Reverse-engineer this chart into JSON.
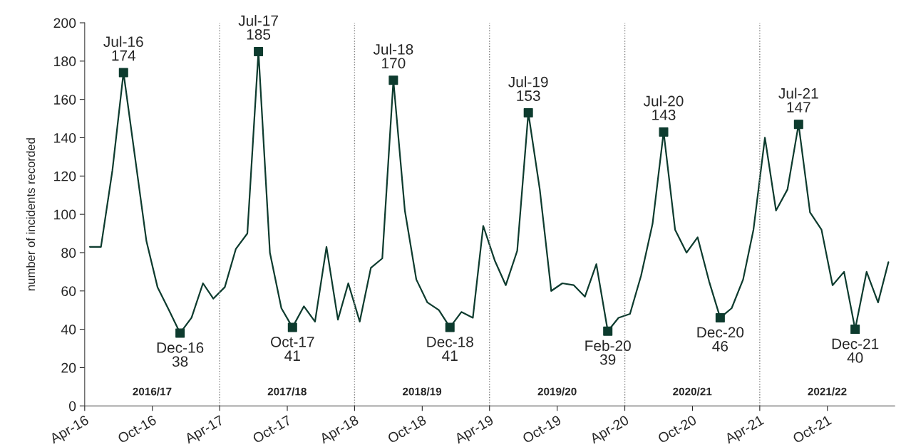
{
  "chart_data": {
    "type": "line",
    "ylabel": "number of incidents recorded",
    "x": [
      "2016-04-15",
      "2016-05-15",
      "2016-06-15",
      "2016-07-15",
      "2016-08-15",
      "2016-09-15",
      "2016-10-15",
      "2016-11-15",
      "2016-12-15",
      "2017-01-15",
      "2017-02-15",
      "2017-03-15",
      "2017-04-15",
      "2017-05-15",
      "2017-06-15",
      "2017-07-15",
      "2017-08-15",
      "2017-09-15",
      "2017-10-15",
      "2017-11-15",
      "2017-12-15",
      "2018-01-15",
      "2018-02-15",
      "2018-03-15",
      "2018-04-15",
      "2018-05-15",
      "2018-06-15",
      "2018-07-15",
      "2018-08-15",
      "2018-09-15",
      "2018-10-15",
      "2018-11-15",
      "2018-12-15",
      "2019-01-15",
      "2019-02-15",
      "2019-03-15",
      "2019-04-15",
      "2019-05-15",
      "2019-06-15",
      "2019-07-15",
      "2019-08-15",
      "2019-09-15",
      "2019-10-15",
      "2019-11-15",
      "2019-12-15",
      "2020-01-15",
      "2020-02-15",
      "2020-03-15",
      "2020-04-15",
      "2020-05-15",
      "2020-06-15",
      "2020-07-15",
      "2020-08-15",
      "2020-09-15",
      "2020-10-15",
      "2020-11-15",
      "2020-12-15",
      "2021-01-15",
      "2021-02-15",
      "2021-03-15",
      "2021-04-15",
      "2021-05-15",
      "2021-06-15",
      "2021-07-15",
      "2021-08-15",
      "2021-09-15",
      "2021-10-15",
      "2021-11-15",
      "2021-12-15",
      "2022-01-15",
      "2022-02-15",
      "2022-03-15"
    ],
    "series": [
      {
        "color": "#0d3b2e",
        "marker": "none",
        "values": [
          83,
          83,
          123,
          174,
          130,
          86,
          62,
          50,
          38,
          46,
          64,
          56,
          62,
          82,
          90,
          185,
          80,
          51,
          41,
          52,
          44,
          83,
          45,
          64,
          44,
          72,
          77,
          170,
          102,
          66,
          54,
          50,
          41,
          49,
          46,
          94,
          76,
          63,
          81,
          153,
          113,
          60,
          64,
          63,
          57,
          74,
          39,
          46,
          48,
          68,
          95,
          143,
          92,
          80,
          88,
          65,
          46,
          51,
          66,
          92,
          140,
          102,
          113,
          147,
          101,
          92,
          63,
          70,
          40,
          70,
          54,
          75
        ]
      },
      {
        "type": "scatter",
        "color": "#0d3b2e",
        "marker": "square",
        "x": [
          "2016-07-15",
          "2016-12-15",
          "2017-07-15",
          "2017-10-15",
          "2018-07-15",
          "2018-12-15",
          "2019-07-15",
          "2020-02-15",
          "2020-07-15",
          "2020-12-15",
          "2021-07-15",
          "2021-12-15"
        ],
        "values": [
          174,
          38,
          185,
          41,
          170,
          41,
          153,
          39,
          143,
          46,
          147,
          40
        ],
        "value_labels": [
          "Jul-16\n174",
          "Dec-16\n38",
          "Jul-17\n185",
          "Oct-17\n41",
          "Jul-18\n170",
          "Dec-18\n41",
          "Jul-19\n153",
          "Feb-20\n39",
          "Jul-20\n143",
          "Dec-20\n46",
          "Jul-21\n147",
          "Dec-21\n40"
        ]
      }
    ],
    "xlim": [
      "2016-04-01",
      "2022-04-01"
    ],
    "xticks": [
      {
        "value": "2016-04-01",
        "label": "Apr-16"
      },
      {
        "value": "2016-10-01",
        "label": "Oct-16"
      },
      {
        "value": "2017-04-01",
        "label": "Apr-17"
      },
      {
        "value": "2017-10-01",
        "label": "Oct-17"
      },
      {
        "value": "2018-04-01",
        "label": "Apr-18"
      },
      {
        "value": "2018-10-01",
        "label": "Oct-18"
      },
      {
        "value": "2019-04-01",
        "label": "Apr-19"
      },
      {
        "value": "2019-10-01",
        "label": "Oct-19"
      },
      {
        "value": "2020-04-01",
        "label": "Apr-20"
      },
      {
        "value": "2020-10-01",
        "label": "Oct-20"
      },
      {
        "value": "2021-04-01",
        "label": "Apr-21"
      },
      {
        "value": "2021-10-01",
        "label": "Oct-21"
      }
    ],
    "ylim": [
      0,
      200
    ],
    "yticks": [
      0,
      20,
      40,
      60,
      80,
      100,
      120,
      140,
      160,
      180,
      200
    ],
    "grid": false,
    "legend": false,
    "ref_lines": [
      {
        "axis": "x",
        "value": "2017-04-01",
        "color": "#808080",
        "line_style": "dotted"
      },
      {
        "axis": "x",
        "value": "2018-04-01",
        "color": "#808080",
        "line_style": "dotted"
      },
      {
        "axis": "x",
        "value": "2019-04-01",
        "color": "#808080",
        "line_style": "dotted"
      },
      {
        "axis": "x",
        "value": "2020-04-01",
        "color": "#808080",
        "line_style": "dotted"
      },
      {
        "axis": "x",
        "value": "2021-04-01",
        "color": "#808080",
        "line_style": "dotted"
      }
    ],
    "annotations": [
      "2016/17",
      "2017/18",
      "2018/19",
      "2019/20",
      "2020/21",
      "2021/22"
    ]
  }
}
